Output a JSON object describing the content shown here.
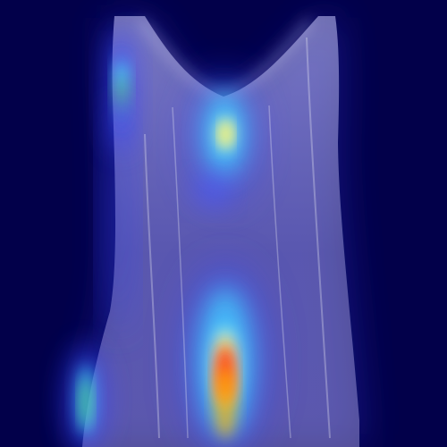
{
  "image": {
    "kind": "heatmap-overlay",
    "colors": {
      "background": "#02004a",
      "silhouette": "#b9b4f0",
      "glow_blue": "#3a49ff",
      "glow_cyan": "#44e0ff",
      "hot_yellow": "#ffe000",
      "hot_red": "#ff3a1a",
      "edge_green": "#4fd48a"
    },
    "regions": [
      "garment-silhouette",
      "neckline-opening",
      "upper-hotspot",
      "lower-hotspot",
      "left-edge-highlight",
      "bottom-left-highlight"
    ]
  }
}
